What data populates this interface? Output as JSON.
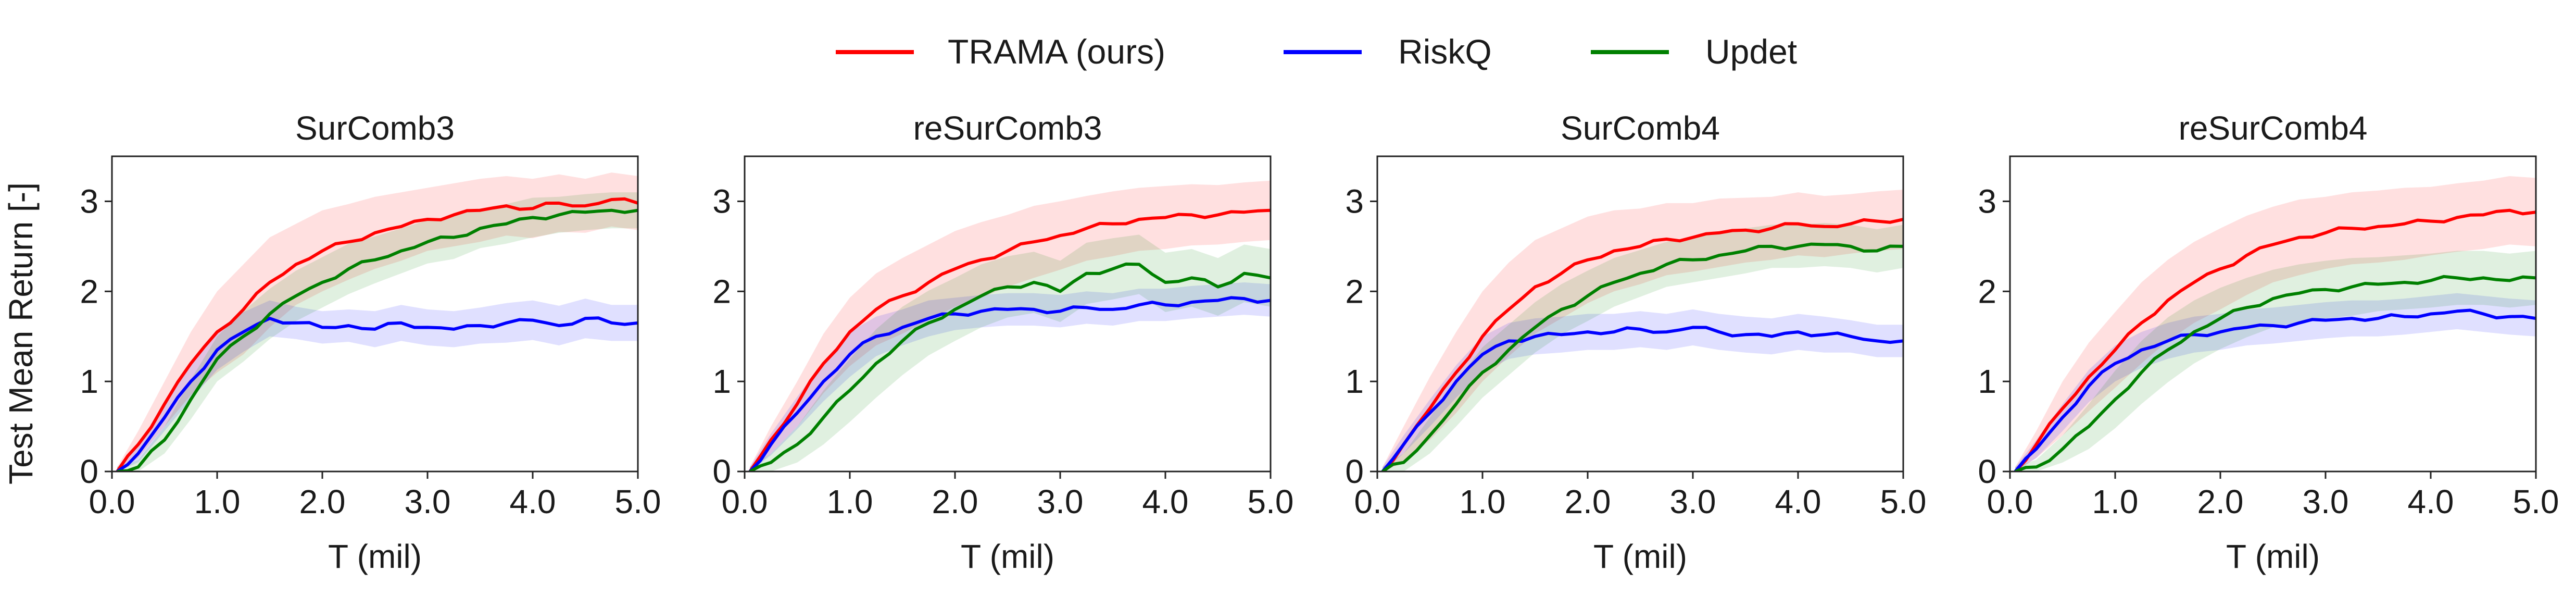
{
  "legend": {
    "entries": [
      {
        "name": "TRAMA (ours)",
        "color": "#ff0000"
      },
      {
        "name": "RiskQ",
        "color": "#0000ff"
      },
      {
        "name": "Updet",
        "color": "#008000"
      }
    ]
  },
  "shared_ylabel": "Test Mean Return [-]",
  "chart_data": [
    {
      "type": "line",
      "title": "SurComb3",
      "xlabel": "T (mil)",
      "ylabel": "Test Mean Return [-]",
      "xlim": [
        0,
        5
      ],
      "ylim": [
        0,
        3.5
      ],
      "xticks": [
        "0.0",
        "1.0",
        "2.0",
        "3.0",
        "4.0",
        "5.0"
      ],
      "yticks": [
        "0",
        "1",
        "2",
        "3"
      ],
      "x": [
        0.05,
        0.25,
        0.5,
        0.75,
        1.0,
        1.25,
        1.5,
        1.75,
        2.0,
        2.25,
        2.5,
        2.75,
        3.0,
        3.25,
        3.5,
        3.75,
        4.0,
        4.25,
        4.5,
        4.75,
        5.0
      ],
      "series": [
        {
          "name": "TRAMA (ours)",
          "values": [
            0.0,
            0.3,
            0.75,
            1.2,
            1.55,
            1.8,
            2.1,
            2.3,
            2.45,
            2.55,
            2.65,
            2.72,
            2.8,
            2.85,
            2.9,
            2.95,
            2.92,
            2.98,
            2.95,
            3.02,
            2.98
          ],
          "band": [
            0.05,
            0.15,
            0.25,
            0.35,
            0.45,
            0.5,
            0.5,
            0.45,
            0.45,
            0.42,
            0.4,
            0.38,
            0.35,
            0.35,
            0.35,
            0.33,
            0.33,
            0.32,
            0.3,
            0.3,
            0.3
          ]
        },
        {
          "name": "RiskQ",
          "values": [
            0.0,
            0.2,
            0.6,
            1.0,
            1.35,
            1.55,
            1.7,
            1.65,
            1.6,
            1.62,
            1.58,
            1.65,
            1.6,
            1.58,
            1.62,
            1.65,
            1.68,
            1.62,
            1.7,
            1.65,
            1.65
          ],
          "band": [
            0.05,
            0.1,
            0.15,
            0.2,
            0.22,
            0.22,
            0.2,
            0.18,
            0.18,
            0.18,
            0.2,
            0.2,
            0.2,
            0.2,
            0.2,
            0.22,
            0.22,
            0.22,
            0.22,
            0.2,
            0.2
          ]
        },
        {
          "name": "Updet",
          "values": [
            0.0,
            0.05,
            0.35,
            0.8,
            1.25,
            1.5,
            1.75,
            1.95,
            2.1,
            2.25,
            2.35,
            2.45,
            2.55,
            2.6,
            2.7,
            2.75,
            2.82,
            2.85,
            2.88,
            2.9,
            2.9
          ],
          "band": [
            0.05,
            0.08,
            0.15,
            0.22,
            0.25,
            0.28,
            0.28,
            0.28,
            0.28,
            0.28,
            0.26,
            0.25,
            0.24,
            0.24,
            0.22,
            0.22,
            0.22,
            0.2,
            0.2,
            0.2,
            0.2
          ]
        }
      ]
    },
    {
      "type": "line",
      "title": "reSurComb3",
      "xlabel": "T (mil)",
      "ylabel": "",
      "xlim": [
        0,
        5
      ],
      "ylim": [
        0,
        3.5
      ],
      "xticks": [
        "0.0",
        "1.0",
        "2.0",
        "3.0",
        "4.0",
        "5.0"
      ],
      "yticks": [
        "0",
        "1",
        "2",
        "3"
      ],
      "x": [
        0.05,
        0.25,
        0.5,
        0.75,
        1.0,
        1.25,
        1.5,
        1.75,
        2.0,
        2.25,
        2.5,
        2.75,
        3.0,
        3.25,
        3.5,
        3.75,
        4.0,
        4.25,
        4.5,
        4.75,
        5.0
      ],
      "series": [
        {
          "name": "TRAMA (ours)",
          "values": [
            0.0,
            0.35,
            0.75,
            1.2,
            1.55,
            1.8,
            1.95,
            2.1,
            2.25,
            2.35,
            2.45,
            2.55,
            2.62,
            2.7,
            2.75,
            2.8,
            2.82,
            2.85,
            2.85,
            2.88,
            2.9
          ],
          "band": [
            0.05,
            0.15,
            0.25,
            0.33,
            0.38,
            0.4,
            0.42,
            0.42,
            0.42,
            0.42,
            0.4,
            0.4,
            0.38,
            0.36,
            0.36,
            0.35,
            0.35,
            0.34,
            0.33,
            0.33,
            0.33
          ]
        },
        {
          "name": "RiskQ",
          "values": [
            0.0,
            0.3,
            0.65,
            1.0,
            1.3,
            1.5,
            1.6,
            1.7,
            1.75,
            1.78,
            1.8,
            1.8,
            1.78,
            1.82,
            1.8,
            1.85,
            1.85,
            1.88,
            1.9,
            1.92,
            1.9
          ],
          "band": [
            0.05,
            0.12,
            0.18,
            0.22,
            0.25,
            0.22,
            0.2,
            0.2,
            0.18,
            0.18,
            0.18,
            0.18,
            0.18,
            0.18,
            0.18,
            0.18,
            0.18,
            0.18,
            0.18,
            0.18,
            0.18
          ]
        },
        {
          "name": "Updet",
          "values": [
            0.0,
            0.1,
            0.3,
            0.6,
            0.9,
            1.2,
            1.45,
            1.65,
            1.8,
            1.95,
            2.05,
            2.1,
            2.0,
            2.2,
            2.25,
            2.3,
            2.1,
            2.15,
            2.05,
            2.2,
            2.15
          ],
          "band": [
            0.05,
            0.1,
            0.2,
            0.3,
            0.35,
            0.38,
            0.38,
            0.36,
            0.35,
            0.35,
            0.34,
            0.34,
            0.34,
            0.34,
            0.34,
            0.33,
            0.33,
            0.32,
            0.32,
            0.32,
            0.32
          ]
        }
      ]
    },
    {
      "type": "line",
      "title": "SurComb4",
      "xlabel": "T (mil)",
      "ylabel": "",
      "xlim": [
        0,
        5
      ],
      "ylim": [
        0,
        3.5
      ],
      "xticks": [
        "0.0",
        "1.0",
        "2.0",
        "3.0",
        "4.0",
        "5.0"
      ],
      "yticks": [
        "0",
        "1",
        "2",
        "3"
      ],
      "x": [
        0.05,
        0.25,
        0.5,
        0.75,
        1.0,
        1.25,
        1.5,
        1.75,
        2.0,
        2.25,
        2.5,
        2.75,
        3.0,
        3.25,
        3.5,
        3.75,
        4.0,
        4.25,
        4.5,
        4.75,
        5.0
      ],
      "series": [
        {
          "name": "TRAMA (ours)",
          "values": [
            0.0,
            0.3,
            0.7,
            1.1,
            1.5,
            1.8,
            2.05,
            2.2,
            2.35,
            2.45,
            2.5,
            2.58,
            2.6,
            2.65,
            2.68,
            2.7,
            2.75,
            2.72,
            2.75,
            2.78,
            2.8
          ],
          "band": [
            0.05,
            0.2,
            0.35,
            0.45,
            0.5,
            0.52,
            0.52,
            0.5,
            0.48,
            0.45,
            0.42,
            0.4,
            0.38,
            0.38,
            0.36,
            0.35,
            0.35,
            0.34,
            0.33,
            0.33,
            0.33
          ]
        },
        {
          "name": "RiskQ",
          "values": [
            0.0,
            0.3,
            0.65,
            1.0,
            1.3,
            1.45,
            1.5,
            1.52,
            1.55,
            1.55,
            1.58,
            1.55,
            1.6,
            1.55,
            1.52,
            1.5,
            1.55,
            1.52,
            1.5,
            1.45,
            1.45
          ],
          "band": [
            0.05,
            0.1,
            0.15,
            0.18,
            0.2,
            0.2,
            0.2,
            0.2,
            0.2,
            0.2,
            0.2,
            0.2,
            0.2,
            0.2,
            0.2,
            0.2,
            0.2,
            0.2,
            0.18,
            0.18,
            0.18
          ]
        },
        {
          "name": "Updet",
          "values": [
            0.0,
            0.1,
            0.4,
            0.75,
            1.1,
            1.35,
            1.6,
            1.8,
            1.95,
            2.1,
            2.2,
            2.3,
            2.35,
            2.4,
            2.45,
            2.5,
            2.5,
            2.52,
            2.5,
            2.45,
            2.5
          ],
          "band": [
            0.05,
            0.1,
            0.2,
            0.25,
            0.28,
            0.28,
            0.28,
            0.28,
            0.28,
            0.27,
            0.26,
            0.25,
            0.25,
            0.25,
            0.25,
            0.24,
            0.24,
            0.24,
            0.24,
            0.24,
            0.24
          ]
        }
      ]
    },
    {
      "type": "line",
      "title": "reSurComb4",
      "xlabel": "T (mil)",
      "ylabel": "",
      "xlim": [
        0,
        5
      ],
      "ylim": [
        0,
        3.5
      ],
      "xticks": [
        "0.0",
        "1.0",
        "2.0",
        "3.0",
        "4.0",
        "5.0"
      ],
      "yticks": [
        "0",
        "1",
        "2",
        "3"
      ],
      "x": [
        0.05,
        0.25,
        0.5,
        0.75,
        1.0,
        1.25,
        1.5,
        1.75,
        2.0,
        2.25,
        2.5,
        2.75,
        3.0,
        3.25,
        3.5,
        3.75,
        4.0,
        4.25,
        4.5,
        4.75,
        5.0
      ],
      "series": [
        {
          "name": "TRAMA (ours)",
          "values": [
            0.0,
            0.3,
            0.7,
            1.05,
            1.35,
            1.65,
            1.9,
            2.1,
            2.25,
            2.4,
            2.52,
            2.6,
            2.65,
            2.7,
            2.72,
            2.75,
            2.78,
            2.82,
            2.85,
            2.9,
            2.88
          ],
          "band": [
            0.05,
            0.15,
            0.3,
            0.38,
            0.42,
            0.45,
            0.45,
            0.45,
            0.45,
            0.44,
            0.42,
            0.42,
            0.4,
            0.4,
            0.4,
            0.4,
            0.38,
            0.38,
            0.38,
            0.38,
            0.38
          ]
        },
        {
          "name": "RiskQ",
          "values": [
            0.0,
            0.25,
            0.6,
            0.95,
            1.2,
            1.35,
            1.45,
            1.52,
            1.55,
            1.6,
            1.62,
            1.65,
            1.68,
            1.7,
            1.7,
            1.72,
            1.75,
            1.78,
            1.75,
            1.72,
            1.7
          ],
          "band": [
            0.05,
            0.1,
            0.15,
            0.18,
            0.2,
            0.2,
            0.2,
            0.2,
            0.2,
            0.2,
            0.2,
            0.2,
            0.2,
            0.2,
            0.2,
            0.2,
            0.2,
            0.2,
            0.2,
            0.2,
            0.2
          ]
        },
        {
          "name": "Updet",
          "values": [
            0.0,
            0.05,
            0.25,
            0.5,
            0.8,
            1.1,
            1.35,
            1.55,
            1.7,
            1.82,
            1.92,
            1.98,
            2.02,
            2.05,
            2.08,
            2.1,
            2.12,
            2.15,
            2.15,
            2.12,
            2.15
          ],
          "band": [
            0.05,
            0.08,
            0.15,
            0.25,
            0.32,
            0.35,
            0.36,
            0.35,
            0.34,
            0.33,
            0.32,
            0.32,
            0.32,
            0.32,
            0.3,
            0.3,
            0.3,
            0.3,
            0.3,
            0.3,
            0.3
          ]
        }
      ]
    }
  ]
}
